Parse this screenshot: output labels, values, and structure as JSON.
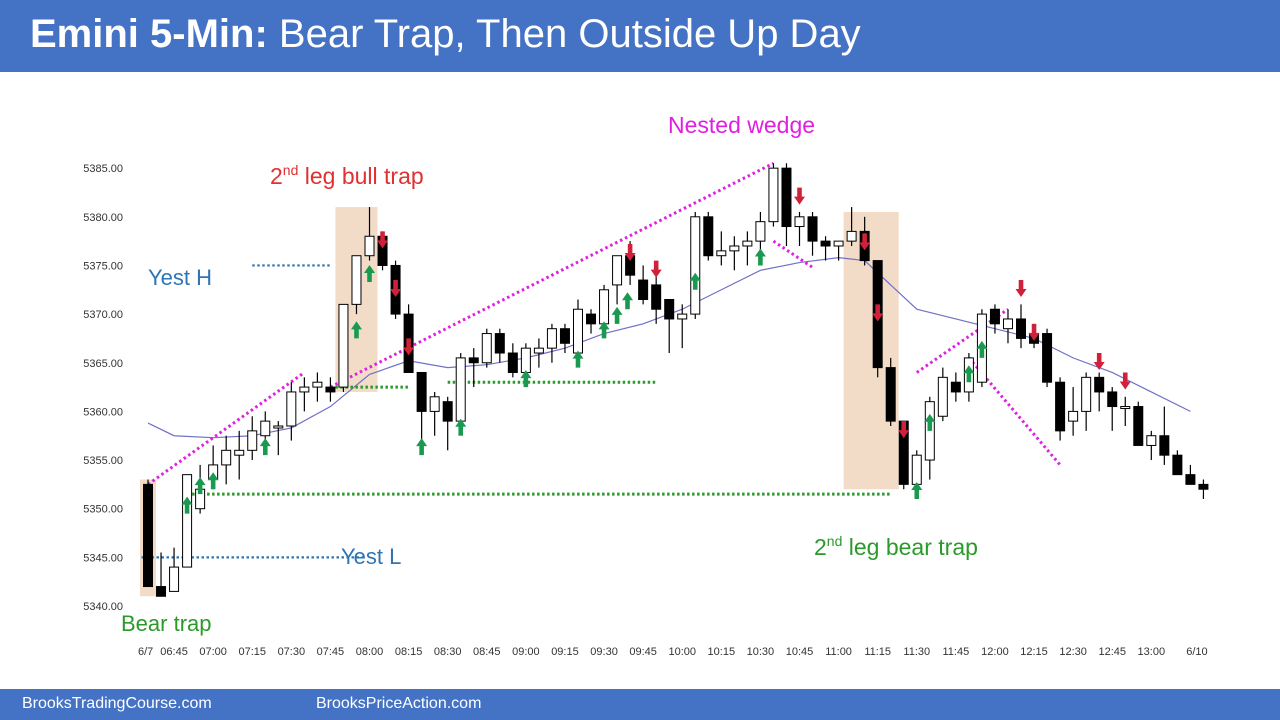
{
  "header": {
    "title_bold": "Emini 5-Min:",
    "title_rest": "Bear Trap, Then Outside Up Day"
  },
  "footer": {
    "left_text": "BrooksTradingCourse.com",
    "right_text": "BrooksPriceAction.com"
  },
  "colors": {
    "header_bg": "#4472c4",
    "bull_body": "#ffffff",
    "bear_body": "#000000",
    "ema": "#7070c8",
    "wedge": "#e020e0",
    "up_arrow": "#1a9a50",
    "down_arrow": "#d0203a",
    "support": "#2a9a2a",
    "yest_level": "#2e75b6",
    "trap_box": "#f2dcc8"
  },
  "chart_data": {
    "type": "candlestick",
    "title": "Emini 5-Min: Bear Trap, Then Outside Up Day",
    "y_ticks": [
      "5340.00",
      "5345.00",
      "5350.00",
      "5355.00",
      "5360.00",
      "5365.00",
      "5370.00",
      "5375.00",
      "5380.00",
      "5385.00"
    ],
    "ylim": [
      5340,
      5385
    ],
    "x_ticks": [
      {
        "label": "6/7",
        "bar": 0
      },
      {
        "label": "06:45",
        "bar": 2
      },
      {
        "label": "07:00",
        "bar": 5
      },
      {
        "label": "07:15",
        "bar": 8
      },
      {
        "label": "07:30",
        "bar": 11
      },
      {
        "label": "07:45",
        "bar": 14
      },
      {
        "label": "08:00",
        "bar": 17
      },
      {
        "label": "08:15",
        "bar": 20
      },
      {
        "label": "08:30",
        "bar": 23
      },
      {
        "label": "08:45",
        "bar": 26
      },
      {
        "label": "09:00",
        "bar": 29
      },
      {
        "label": "09:15",
        "bar": 32
      },
      {
        "label": "09:30",
        "bar": 35
      },
      {
        "label": "09:45",
        "bar": 38
      },
      {
        "label": "10:00",
        "bar": 41
      },
      {
        "label": "10:15",
        "bar": 44
      },
      {
        "label": "10:30",
        "bar": 47
      },
      {
        "label": "10:45",
        "bar": 50
      },
      {
        "label": "11:00",
        "bar": 53
      },
      {
        "label": "11:15",
        "bar": 56
      },
      {
        "label": "11:30",
        "bar": 59
      },
      {
        "label": "11:45",
        "bar": 62
      },
      {
        "label": "12:00",
        "bar": 65
      },
      {
        "label": "12:15",
        "bar": 68
      },
      {
        "label": "12:30",
        "bar": 71
      },
      {
        "label": "12:45",
        "bar": 74
      },
      {
        "label": "13:00",
        "bar": 77
      },
      {
        "label": "6/10",
        "bar": 80.5
      }
    ],
    "bars": [
      {
        "o": 5352.5,
        "h": 5353,
        "l": 5342,
        "c": 5342
      },
      {
        "o": 5342,
        "h": 5345.5,
        "l": 5341,
        "c": 5341
      },
      {
        "o": 5341.5,
        "h": 5346,
        "l": 5341.5,
        "c": 5344
      },
      {
        "o": 5344,
        "h": 5353.5,
        "l": 5344,
        "c": 5353.5
      },
      {
        "o": 5350,
        "h": 5354.5,
        "l": 5349.5,
        "c": 5352
      },
      {
        "o": 5353,
        "h": 5356.5,
        "l": 5352,
        "c": 5354.5
      },
      {
        "o": 5354.5,
        "h": 5357.5,
        "l": 5352.5,
        "c": 5356
      },
      {
        "o": 5355.5,
        "h": 5358,
        "l": 5353,
        "c": 5356
      },
      {
        "o": 5356,
        "h": 5359.5,
        "l": 5355,
        "c": 5358
      },
      {
        "o": 5357.5,
        "h": 5360,
        "l": 5356,
        "c": 5359
      },
      {
        "o": 5358.5,
        "h": 5359,
        "l": 5355.5,
        "c": 5358.5
      },
      {
        "o": 5358.5,
        "h": 5363,
        "l": 5357,
        "c": 5362
      },
      {
        "o": 5362,
        "h": 5363.5,
        "l": 5360,
        "c": 5362.5
      },
      {
        "o": 5362.5,
        "h": 5364,
        "l": 5361,
        "c": 5363
      },
      {
        "o": 5362.5,
        "h": 5363.5,
        "l": 5361,
        "c": 5362
      },
      {
        "o": 5362.5,
        "h": 5371,
        "l": 5362,
        "c": 5371
      },
      {
        "o": 5371,
        "h": 5376,
        "l": 5370,
        "c": 5376
      },
      {
        "o": 5376,
        "h": 5381,
        "l": 5375.5,
        "c": 5378
      },
      {
        "o": 5378,
        "h": 5378.5,
        "l": 5374.5,
        "c": 5375
      },
      {
        "o": 5375,
        "h": 5375.5,
        "l": 5369.5,
        "c": 5370
      },
      {
        "o": 5370,
        "h": 5371,
        "l": 5364,
        "c": 5364
      },
      {
        "o": 5364,
        "h": 5364,
        "l": 5357,
        "c": 5360
      },
      {
        "o": 5360,
        "h": 5362,
        "l": 5357.5,
        "c": 5361.5
      },
      {
        "o": 5361,
        "h": 5361.5,
        "l": 5356,
        "c": 5359
      },
      {
        "o": 5359,
        "h": 5366,
        "l": 5358,
        "c": 5365.5
      },
      {
        "o": 5365.5,
        "h": 5366.5,
        "l": 5362.5,
        "c": 5365
      },
      {
        "o": 5365,
        "h": 5368.5,
        "l": 5364.5,
        "c": 5368
      },
      {
        "o": 5368,
        "h": 5368.5,
        "l": 5365,
        "c": 5366
      },
      {
        "o": 5366,
        "h": 5367,
        "l": 5363.5,
        "c": 5364
      },
      {
        "o": 5364,
        "h": 5367,
        "l": 5363,
        "c": 5366.5
      },
      {
        "o": 5366,
        "h": 5367.5,
        "l": 5364.5,
        "c": 5366.5
      },
      {
        "o": 5366.5,
        "h": 5369,
        "l": 5365,
        "c": 5368.5
      },
      {
        "o": 5368.5,
        "h": 5369,
        "l": 5366,
        "c": 5367
      },
      {
        "o": 5366,
        "h": 5371.5,
        "l": 5365,
        "c": 5370.5
      },
      {
        "o": 5370,
        "h": 5370.5,
        "l": 5368,
        "c": 5369
      },
      {
        "o": 5369,
        "h": 5373,
        "l": 5368,
        "c": 5372.5
      },
      {
        "o": 5373,
        "h": 5376,
        "l": 5371,
        "c": 5376
      },
      {
        "o": 5376,
        "h": 5377.5,
        "l": 5373,
        "c": 5374
      },
      {
        "o": 5373.5,
        "h": 5375,
        "l": 5371,
        "c": 5371.5
      },
      {
        "o": 5373,
        "h": 5374,
        "l": 5369,
        "c": 5370.5
      },
      {
        "o": 5371.5,
        "h": 5371.5,
        "l": 5366,
        "c": 5369.5
      },
      {
        "o": 5369.5,
        "h": 5371,
        "l": 5366.5,
        "c": 5370
      },
      {
        "o": 5370,
        "h": 5380.5,
        "l": 5369.5,
        "c": 5380
      },
      {
        "o": 5380,
        "h": 5380.5,
        "l": 5375.5,
        "c": 5376
      },
      {
        "o": 5376,
        "h": 5378.5,
        "l": 5375,
        "c": 5376.5
      },
      {
        "o": 5376.5,
        "h": 5378,
        "l": 5374.5,
        "c": 5377
      },
      {
        "o": 5377,
        "h": 5378.5,
        "l": 5375,
        "c": 5377.5
      },
      {
        "o": 5377.5,
        "h": 5380.5,
        "l": 5376.5,
        "c": 5379.5
      },
      {
        "o": 5379.5,
        "h": 5385.5,
        "l": 5379,
        "c": 5385
      },
      {
        "o": 5385,
        "h": 5385.5,
        "l": 5377,
        "c": 5379
      },
      {
        "o": 5379,
        "h": 5380.5,
        "l": 5377,
        "c": 5380
      },
      {
        "o": 5380,
        "h": 5380.5,
        "l": 5376,
        "c": 5377.5
      },
      {
        "o": 5377.5,
        "h": 5378,
        "l": 5375.5,
        "c": 5377
      },
      {
        "o": 5377,
        "h": 5377.5,
        "l": 5375.5,
        "c": 5377.5
      },
      {
        "o": 5377.5,
        "h": 5381,
        "l": 5377,
        "c": 5378.5
      },
      {
        "o": 5378.5,
        "h": 5380,
        "l": 5375,
        "c": 5375.5
      },
      {
        "o": 5375.5,
        "h": 5375.5,
        "l": 5363.5,
        "c": 5364.5
      },
      {
        "o": 5364.5,
        "h": 5365.5,
        "l": 5358.5,
        "c": 5359
      },
      {
        "o": 5359,
        "h": 5359,
        "l": 5352,
        "c": 5352.5
      },
      {
        "o": 5352.5,
        "h": 5356,
        "l": 5351.5,
        "c": 5355.5
      },
      {
        "o": 5355,
        "h": 5361.5,
        "l": 5353,
        "c": 5361
      },
      {
        "o": 5359.5,
        "h": 5364.5,
        "l": 5359,
        "c": 5363.5
      },
      {
        "o": 5363,
        "h": 5364,
        "l": 5361,
        "c": 5362
      },
      {
        "o": 5362,
        "h": 5366,
        "l": 5361,
        "c": 5365.5
      },
      {
        "o": 5363,
        "h": 5370.5,
        "l": 5362.5,
        "c": 5370
      },
      {
        "o": 5370.5,
        "h": 5371,
        "l": 5368,
        "c": 5369
      },
      {
        "o": 5368.5,
        "h": 5370.5,
        "l": 5367,
        "c": 5369.5
      },
      {
        "o": 5369.5,
        "h": 5371,
        "l": 5366.5,
        "c": 5367.5
      },
      {
        "o": 5368,
        "h": 5369,
        "l": 5366.5,
        "c": 5367
      },
      {
        "o": 5368,
        "h": 5368.5,
        "l": 5362.5,
        "c": 5363
      },
      {
        "o": 5363,
        "h": 5363.5,
        "l": 5357,
        "c": 5358
      },
      {
        "o": 5359,
        "h": 5362.5,
        "l": 5357.5,
        "c": 5360
      },
      {
        "o": 5360,
        "h": 5364,
        "l": 5358,
        "c": 5363.5
      },
      {
        "o": 5363.5,
        "h": 5364,
        "l": 5360,
        "c": 5362
      },
      {
        "o": 5362,
        "h": 5362.5,
        "l": 5358,
        "c": 5360.5
      },
      {
        "o": 5360.5,
        "h": 5361.5,
        "l": 5358.5,
        "c": 5360.5
      },
      {
        "o": 5360.5,
        "h": 5361,
        "l": 5356.5,
        "c": 5356.5
      },
      {
        "o": 5356.5,
        "h": 5358,
        "l": 5355,
        "c": 5357.5
      },
      {
        "o": 5357.5,
        "h": 5360.5,
        "l": 5354.5,
        "c": 5355.5
      },
      {
        "o": 5355.5,
        "h": 5356,
        "l": 5353.5,
        "c": 5353.5
      },
      {
        "o": 5353.5,
        "h": 5354.5,
        "l": 5352.5,
        "c": 5352.5
      },
      {
        "o": 5352.5,
        "h": 5353,
        "l": 5351,
        "c": 5352
      }
    ],
    "ema": [
      {
        "bar": 0,
        "v": 5358.8
      },
      {
        "bar": 2,
        "v": 5357.5
      },
      {
        "bar": 5,
        "v": 5357.3
      },
      {
        "bar": 8,
        "v": 5357.5
      },
      {
        "bar": 11,
        "v": 5358.3
      },
      {
        "bar": 14,
        "v": 5360.5
      },
      {
        "bar": 17,
        "v": 5363.8
      },
      {
        "bar": 20,
        "v": 5365.2
      },
      {
        "bar": 23,
        "v": 5364.5
      },
      {
        "bar": 26,
        "v": 5364.8
      },
      {
        "bar": 29,
        "v": 5365.5
      },
      {
        "bar": 32,
        "v": 5366.5
      },
      {
        "bar": 35,
        "v": 5368
      },
      {
        "bar": 38,
        "v": 5369
      },
      {
        "bar": 41,
        "v": 5370.5
      },
      {
        "bar": 44,
        "v": 5372.5
      },
      {
        "bar": 47,
        "v": 5374.5
      },
      {
        "bar": 50,
        "v": 5375.3
      },
      {
        "bar": 53,
        "v": 5375.8
      },
      {
        "bar": 55,
        "v": 5375.5
      },
      {
        "bar": 57,
        "v": 5373
      },
      {
        "bar": 59,
        "v": 5370.5
      },
      {
        "bar": 62,
        "v": 5369.5
      },
      {
        "bar": 65,
        "v": 5368.5
      },
      {
        "bar": 68,
        "v": 5367.5
      },
      {
        "bar": 71,
        "v": 5365.5
      },
      {
        "bar": 74,
        "v": 5364
      },
      {
        "bar": 77,
        "v": 5362
      },
      {
        "bar": 80,
        "v": 5360
      }
    ],
    "trap_boxes": [
      {
        "bar_from": 0,
        "bar_to": 0,
        "ymin": 5341,
        "ymax": 5353
      },
      {
        "bar_from": 15,
        "bar_to": 17,
        "ymin": 5362,
        "ymax": 5381
      },
      {
        "bar_from": 54,
        "bar_to": 57,
        "ymin": 5352,
        "ymax": 5380.5
      }
    ],
    "horizontal_levels": [
      {
        "kind": "yest_high",
        "bar_from": 8,
        "bar_to": 14,
        "y": 5375
      },
      {
        "kind": "yest_low",
        "bar_from": -0.5,
        "bar_to": 16.5,
        "y": 5345
      },
      {
        "kind": "support",
        "bar_from": 3,
        "bar_to": 57,
        "y": 5351.5
      },
      {
        "kind": "support",
        "bar_from": 14,
        "bar_to": 20,
        "y": 5362.5
      },
      {
        "kind": "support",
        "bar_from": 23,
        "bar_to": 39,
        "y": 5363
      }
    ],
    "wedge_lines": [
      {
        "from": {
          "bar": 0,
          "v": 5352.5
        },
        "to": {
          "bar": 12,
          "v": 5364
        }
      },
      {
        "from": {
          "bar": 14,
          "v": 5362.5
        },
        "to": {
          "bar": 48,
          "v": 5385.5
        }
      },
      {
        "from": {
          "bar": 48,
          "v": 5377.5
        },
        "to": {
          "bar": 51,
          "v": 5374.8
        }
      },
      {
        "from": {
          "bar": 59,
          "v": 5364
        },
        "to": {
          "bar": 66,
          "v": 5370.5
        }
      },
      {
        "from": {
          "bar": 63,
          "v": 5365.5
        },
        "to": {
          "bar": 70,
          "v": 5354.5
        }
      }
    ],
    "up_arrows": [
      {
        "bar": 3,
        "v": 5349.5
      },
      {
        "bar": 4,
        "v": 5351.5
      },
      {
        "bar": 5,
        "v": 5352
      },
      {
        "bar": 9,
        "v": 5355.5
      },
      {
        "bar": 16,
        "v": 5367.5
      },
      {
        "bar": 17,
        "v": 5373.3
      },
      {
        "bar": 21,
        "v": 5355.5
      },
      {
        "bar": 24,
        "v": 5357.5
      },
      {
        "bar": 29,
        "v": 5362.5
      },
      {
        "bar": 33,
        "v": 5364.5
      },
      {
        "bar": 35,
        "v": 5367.5
      },
      {
        "bar": 36,
        "v": 5369
      },
      {
        "bar": 36.8,
        "v": 5370.5
      },
      {
        "bar": 42,
        "v": 5372.5
      },
      {
        "bar": 47,
        "v": 5375
      },
      {
        "bar": 59,
        "v": 5351
      },
      {
        "bar": 60,
        "v": 5358
      },
      {
        "bar": 63,
        "v": 5363
      },
      {
        "bar": 64,
        "v": 5365.5
      }
    ],
    "down_arrows": [
      {
        "bar": 18,
        "v": 5378.5
      },
      {
        "bar": 19,
        "v": 5373.5
      },
      {
        "bar": 20,
        "v": 5367.5
      },
      {
        "bar": 37,
        "v": 5377.2
      },
      {
        "bar": 39,
        "v": 5375.5
      },
      {
        "bar": 50,
        "v": 5383
      },
      {
        "bar": 55,
        "v": 5378.3
      },
      {
        "bar": 56,
        "v": 5371
      },
      {
        "bar": 58,
        "v": 5359
      },
      {
        "bar": 67,
        "v": 5373.5
      },
      {
        "bar": 68,
        "v": 5369
      },
      {
        "bar": 73,
        "v": 5366
      },
      {
        "bar": 75,
        "v": 5364
      }
    ],
    "annotations": [
      {
        "id": "second-leg-bull-trap",
        "base": "2",
        "sup": "nd",
        "rest": " leg bull trap",
        "color": "#e03030"
      },
      {
        "id": "nested-wedge",
        "text": "Nested wedge",
        "color": "#e020e0"
      },
      {
        "id": "yest-h",
        "text": "Yest H",
        "color": "#2e75b6"
      },
      {
        "id": "yest-l",
        "text": "Yest L",
        "color": "#2e75b6"
      },
      {
        "id": "bear-trap",
        "text": "Bear trap",
        "color": "#2a9a2a"
      },
      {
        "id": "second-leg-bear-trap",
        "base": "2",
        "sup": "nd",
        "rest": " leg bear trap",
        "color": "#2a9a2a"
      }
    ],
    "grid": false,
    "legend": "none"
  }
}
